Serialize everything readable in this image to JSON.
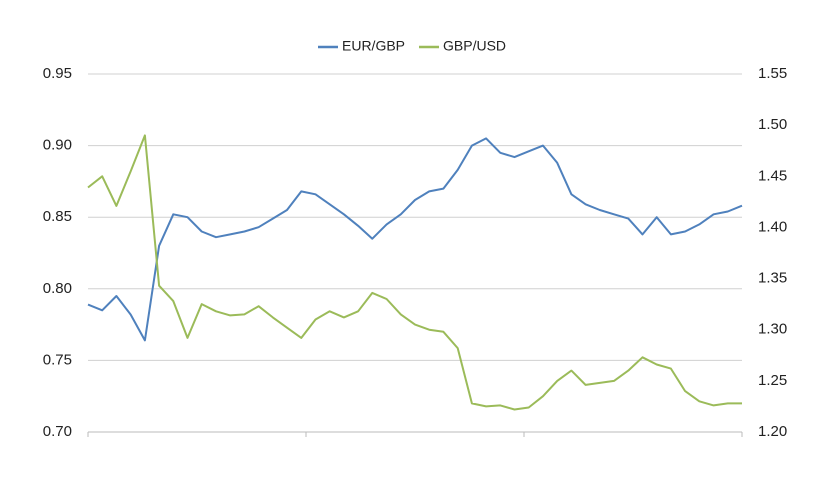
{
  "chart_data": {
    "type": "line",
    "series": [
      {
        "name": "EUR/GBP",
        "color": "#4f81bd",
        "axis": "y",
        "values": [
          0.789,
          0.785,
          0.795,
          0.782,
          0.764,
          0.83,
          0.852,
          0.85,
          0.84,
          0.836,
          0.838,
          0.84,
          0.843,
          0.849,
          0.855,
          0.868,
          0.866,
          0.859,
          0.852,
          0.844,
          0.835,
          0.845,
          0.852,
          0.862,
          0.868,
          0.87,
          0.883,
          0.9,
          0.905,
          0.895,
          0.892,
          0.896,
          0.9,
          0.888,
          0.866,
          0.859,
          0.855,
          0.852,
          0.849,
          0.838,
          0.85,
          0.838,
          0.84,
          0.845,
          0.852,
          0.854,
          0.858
        ]
      },
      {
        "name": "GBP/USD",
        "color": "#9bbb59",
        "axis": "y2",
        "values": [
          1.439,
          1.45,
          1.421,
          1.455,
          1.49,
          1.343,
          1.328,
          1.292,
          1.325,
          1.318,
          1.314,
          1.315,
          1.323,
          1.312,
          1.302,
          1.292,
          1.31,
          1.318,
          1.312,
          1.318,
          1.336,
          1.33,
          1.315,
          1.305,
          1.3,
          1.298,
          1.282,
          1.228,
          1.225,
          1.226,
          1.222,
          1.224,
          1.235,
          1.25,
          1.26,
          1.246,
          1.248,
          1.25,
          1.26,
          1.273,
          1.266,
          1.262,
          1.24,
          1.23,
          1.226,
          1.228,
          1.228
        ]
      }
    ],
    "ylim": [
      0.7,
      0.95
    ],
    "yticks": [
      {
        "value": 0.7,
        "label": "0.70"
      },
      0.75,
      {
        "value": 0.8,
        "label": "0.80"
      },
      0.85,
      {
        "value": 0.9,
        "label": "0.90"
      },
      0.95
    ],
    "y2lim": [
      1.2,
      1.55
    ],
    "y2ticks": [
      {
        "value": 1.2,
        "label": "1.20"
      },
      1.25,
      {
        "value": 1.3,
        "label": "1.30"
      },
      1.35,
      {
        "value": 1.4,
        "label": "1.40"
      },
      1.45,
      {
        "value": 1.5,
        "label": "1.50"
      },
      1.55
    ],
    "grid": true,
    "legend": "top"
  }
}
